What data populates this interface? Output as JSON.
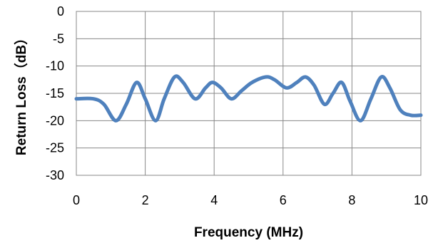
{
  "chart_data": {
    "type": "line",
    "title": "",
    "xlabel": "Frequency (MHz)",
    "ylabel": "Return Loss（dB）",
    "xlim": [
      0,
      10
    ],
    "ylim": [
      -30,
      0
    ],
    "xticks": [
      0,
      2,
      4,
      6,
      8,
      10
    ],
    "xtick_labels": [
      "0",
      "2",
      "4",
      "6",
      "8",
      "10"
    ],
    "yticks": [
      0,
      -5,
      -10,
      -15,
      -20,
      -25,
      -30
    ],
    "ytick_labels": [
      "0",
      "-5",
      "-10",
      "-15",
      "-20",
      "-25",
      "-30"
    ],
    "grid": true,
    "legend": "none",
    "series": [
      {
        "color": "#4F81BD",
        "x": [
          0,
          0.5,
          0.8,
          1.15,
          1.45,
          1.75,
          2.0,
          2.3,
          2.55,
          2.85,
          3.1,
          3.45,
          3.75,
          3.95,
          4.2,
          4.5,
          4.8,
          5.1,
          5.5,
          5.75,
          6.1,
          6.4,
          6.65,
          6.9,
          7.2,
          7.45,
          7.7,
          7.95,
          8.25,
          8.55,
          8.85,
          9.1,
          9.4,
          9.7,
          10
        ],
        "y": [
          -16,
          -16,
          -17,
          -20,
          -17,
          -13,
          -16,
          -20,
          -16,
          -12,
          -13,
          -16,
          -14,
          -13,
          -14,
          -16,
          -14.5,
          -13,
          -12,
          -12.5,
          -14,
          -13,
          -12,
          -13.5,
          -17,
          -15,
          -13,
          -16.5,
          -20,
          -16,
          -12,
          -14,
          -18,
          -19,
          -19
        ]
      }
    ]
  }
}
